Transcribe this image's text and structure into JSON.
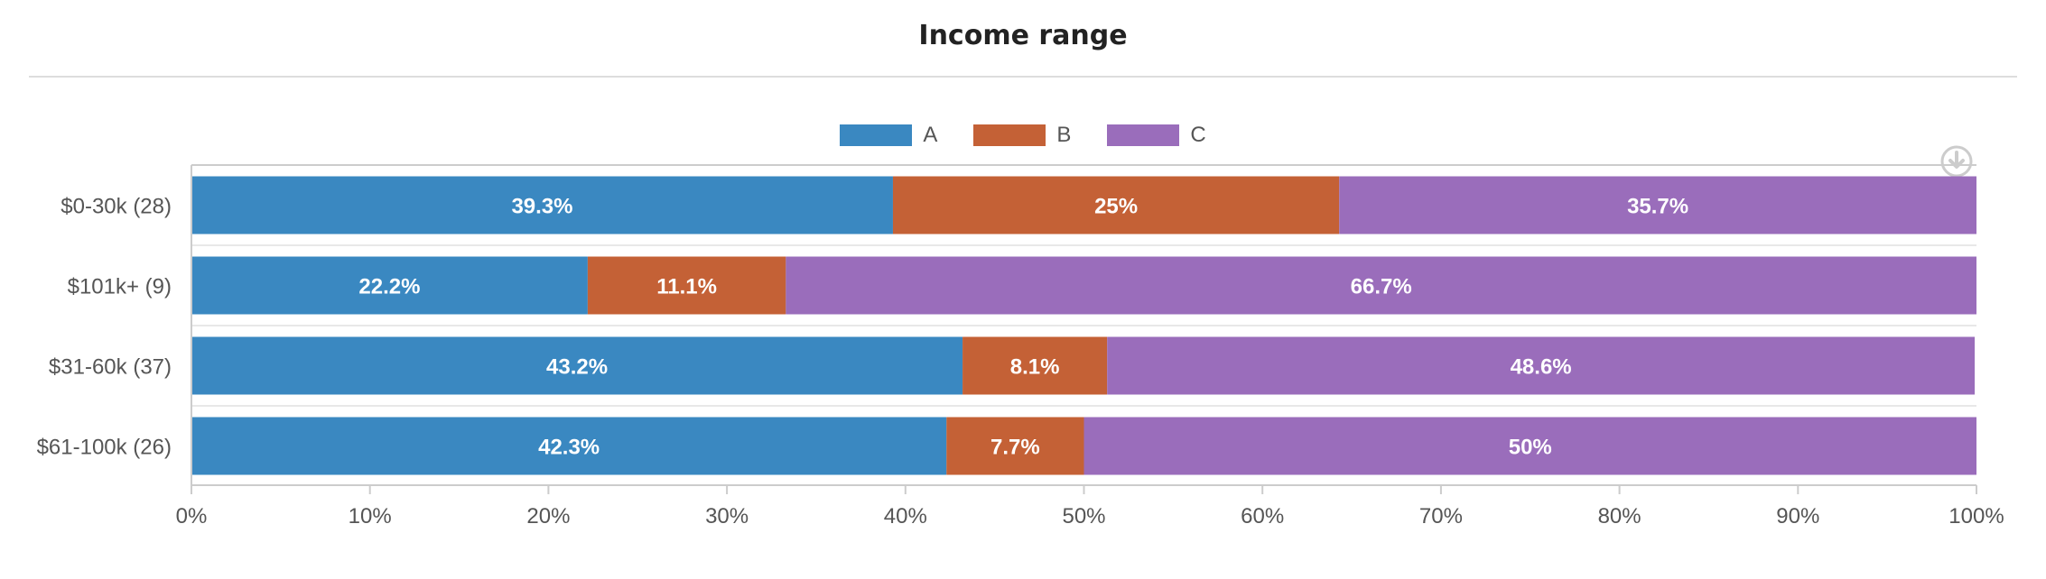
{
  "chart_data": {
    "type": "bar",
    "orientation": "horizontal",
    "stacked": "percent",
    "title": "Income range",
    "categories": [
      "$0-30k (28)",
      "$101k+ (9)",
      "$31-60k (37)",
      "$61-100k (26)"
    ],
    "series": [
      {
        "name": "A",
        "color": "#3a88c1",
        "values": [
          39.3,
          22.2,
          43.2,
          42.3
        ],
        "labels": [
          "39.3%",
          "22.2%",
          "43.2%",
          "42.3%"
        ]
      },
      {
        "name": "B",
        "color": "#c46136",
        "values": [
          25,
          11.1,
          8.1,
          7.7
        ],
        "labels": [
          "25%",
          "11.1%",
          "8.1%",
          "7.7%"
        ]
      },
      {
        "name": "C",
        "color": "#9a6dbb",
        "values": [
          35.7,
          66.7,
          48.6,
          50
        ],
        "labels": [
          "35.7%",
          "66.7%",
          "48.6%",
          "50%"
        ]
      }
    ],
    "xlim": [
      0,
      100
    ],
    "xticks": [
      "0%",
      "10%",
      "20%",
      "30%",
      "40%",
      "50%",
      "60%",
      "70%",
      "80%",
      "90%",
      "100%"
    ],
    "legend_position": "top-center",
    "grid": false
  }
}
